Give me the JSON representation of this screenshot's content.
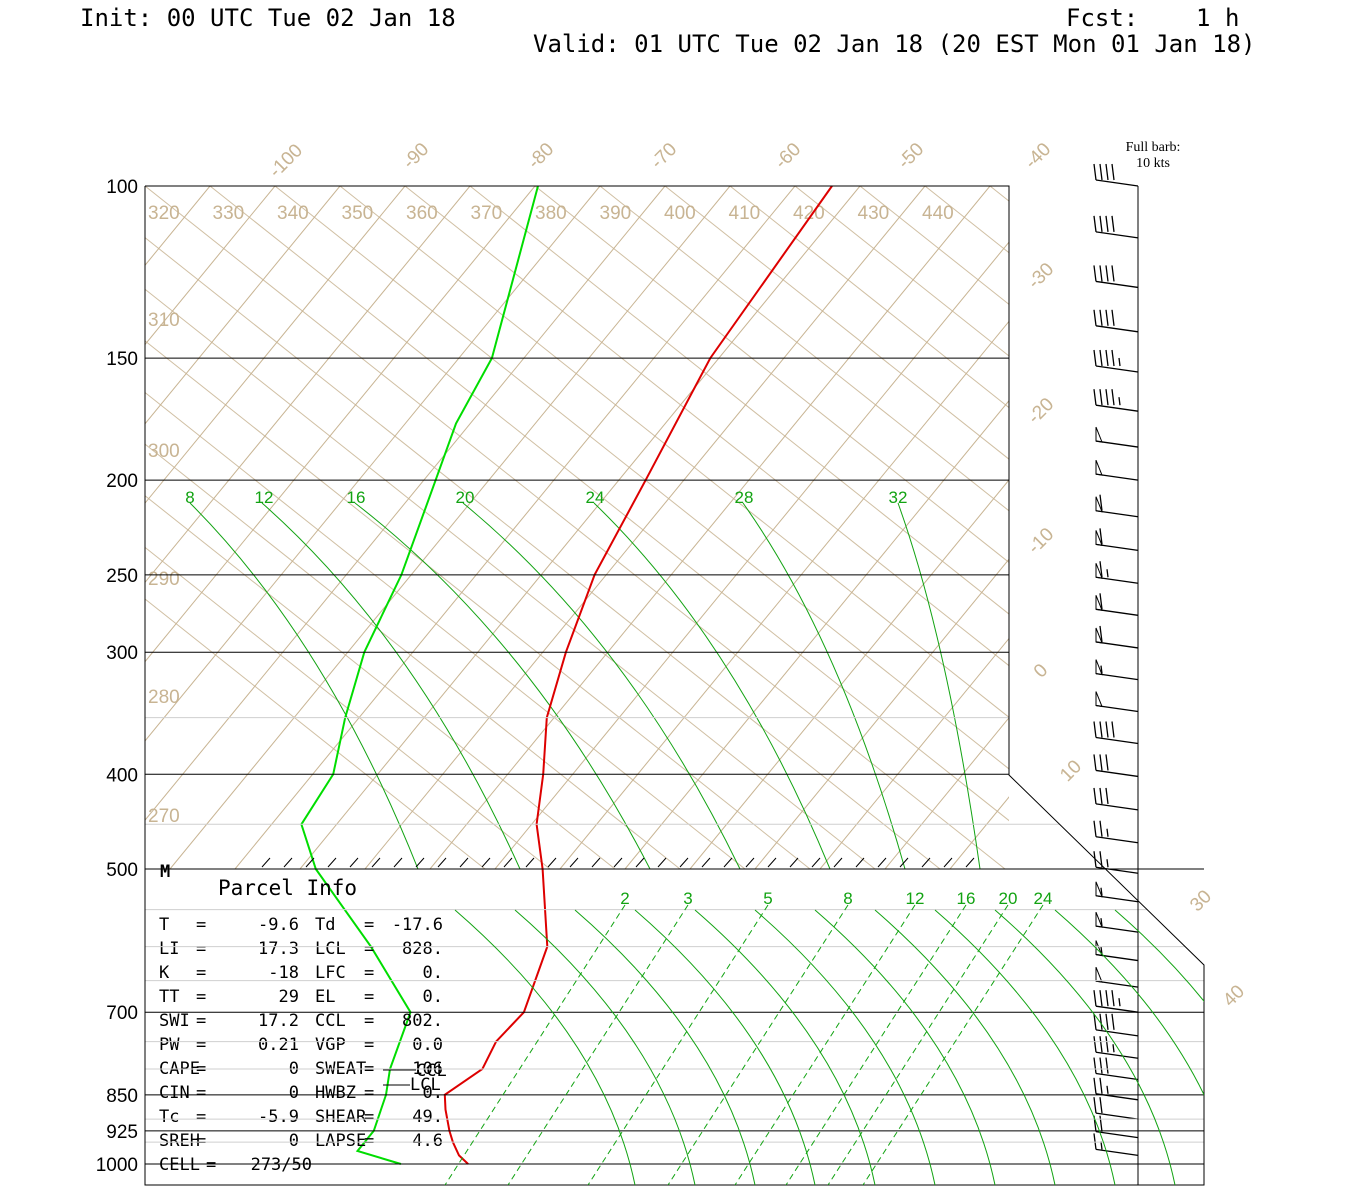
{
  "header": {
    "init": "Init: 00 UTC Tue 02 Jan 18",
    "fcst": "Fcst:    1 h",
    "valid": "Valid: 01 UTC Tue 02 Jan 18 (20 EST Mon 01 Jan 18)"
  },
  "barb_legend": {
    "line1": "Full barb:",
    "line2": "10 kts"
  },
  "parcel": {
    "title": "Parcel Info",
    "rows": [
      [
        "T",
        "-9.6",
        "Td",
        "-17.6"
      ],
      [
        "LI",
        "17.3",
        "LCL",
        "828."
      ],
      [
        "K",
        "-18",
        "LFC",
        "0."
      ],
      [
        "TT",
        "29",
        "EL",
        "0."
      ],
      [
        "SWI",
        "17.2",
        "CCL",
        "802."
      ],
      [
        "PW",
        "0.21",
        "VGP",
        "0.0"
      ],
      [
        "CAPE",
        "0",
        "SWEAT",
        "106"
      ],
      [
        "CIN",
        "0",
        "HWBZ",
        "0."
      ],
      [
        "Tc",
        "-5.9",
        "SHEAR",
        "49."
      ],
      [
        "SREH",
        "0",
        "LAPSE",
        "4.6"
      ],
      [
        "CELL",
        "273/50",
        "",
        ""
      ]
    ]
  },
  "markers": {
    "ccl": "CCL",
    "lcl": "LCL",
    "m": "M"
  },
  "colors": {
    "temperature": "#dd0000",
    "dewpoint": "#00dd00",
    "isotherm": "#c8b493",
    "mixing_ratio": "#12a312",
    "isobar": "#000000"
  },
  "chart_data": {
    "type": "line",
    "title": "",
    "yscale": "log-pressure (mb)",
    "pressure_ticks": [
      "100",
      "150",
      "200",
      "250",
      "300",
      "400",
      "500",
      "700",
      "850",
      "925",
      "1000"
    ],
    "isotherm_labels": [
      "-100",
      "-90",
      "-80",
      "-70",
      "-60",
      "-50",
      "-40",
      "-30",
      "-20",
      "-10",
      "0",
      "10",
      "30",
      "40"
    ],
    "theta_labels_top": [
      "320",
      "330",
      "340",
      "350",
      "360",
      "370",
      "380",
      "390",
      "400",
      "410",
      "420",
      "430",
      "440"
    ],
    "theta_labels_left": [
      "310",
      "300",
      "290",
      "280",
      "270"
    ],
    "mixing_ratio_labels_upper": [
      "8",
      "12",
      "16",
      "20",
      "24",
      "28",
      "32"
    ],
    "mixing_ratio_labels_lower": [
      "2",
      "3",
      "5",
      "8",
      "12",
      "16",
      "20",
      "24"
    ],
    "series": [
      {
        "name": "T",
        "points": [
          [
            1000,
            -9.6
          ],
          [
            980,
            -11.5
          ],
          [
            950,
            -13.5
          ],
          [
            925,
            -15
          ],
          [
            880,
            -17.5
          ],
          [
            850,
            -19
          ],
          [
            800,
            -17
          ],
          [
            750,
            -18
          ],
          [
            700,
            -17.5
          ],
          [
            600,
            -21
          ],
          [
            500,
            -29
          ],
          [
            450,
            -34
          ],
          [
            400,
            -38
          ],
          [
            350,
            -43
          ],
          [
            300,
            -47
          ],
          [
            250,
            -51
          ],
          [
            200,
            -54
          ],
          [
            150,
            -58
          ],
          [
            100,
            -60
          ]
        ]
      },
      {
        "name": "Td",
        "points": [
          [
            1000,
            -17.6
          ],
          [
            970,
            -24
          ],
          [
            925,
            -24
          ],
          [
            850,
            -26
          ],
          [
            800,
            -28
          ],
          [
            700,
            -31
          ],
          [
            600,
            -42
          ],
          [
            500,
            -56
          ],
          [
            450,
            -62
          ],
          [
            400,
            -63
          ],
          [
            350,
            -67
          ],
          [
            300,
            -71
          ],
          [
            250,
            -74
          ],
          [
            200,
            -79
          ],
          [
            175,
            -82
          ],
          [
            150,
            -84
          ],
          [
            100,
            -95
          ]
        ]
      }
    ],
    "winds_kt": [
      {
        "p": 100,
        "speed": 40
      },
      {
        "p": 113,
        "speed": 40
      },
      {
        "p": 127,
        "speed": 40
      },
      {
        "p": 141,
        "speed": 40
      },
      {
        "p": 155,
        "speed": 45
      },
      {
        "p": 170,
        "speed": 45
      },
      {
        "p": 185,
        "speed": 50
      },
      {
        "p": 200,
        "speed": 50
      },
      {
        "p": 218,
        "speed": 60
      },
      {
        "p": 236,
        "speed": 60
      },
      {
        "p": 255,
        "speed": 65
      },
      {
        "p": 275,
        "speed": 60
      },
      {
        "p": 297,
        "speed": 60
      },
      {
        "p": 320,
        "speed": 55
      },
      {
        "p": 345,
        "speed": 50
      },
      {
        "p": 372,
        "speed": 40
      },
      {
        "p": 402,
        "speed": 30
      },
      {
        "p": 435,
        "speed": 30
      },
      {
        "p": 470,
        "speed": 25
      },
      {
        "p": 505,
        "speed": 25
      },
      {
        "p": 540,
        "speed": 55
      },
      {
        "p": 580,
        "speed": 55
      },
      {
        "p": 620,
        "speed": 55
      },
      {
        "p": 660,
        "speed": 50
      },
      {
        "p": 700,
        "speed": 45
      },
      {
        "p": 740,
        "speed": 40
      },
      {
        "p": 780,
        "speed": 35
      },
      {
        "p": 820,
        "speed": 30
      },
      {
        "p": 860,
        "speed": 25
      },
      {
        "p": 900,
        "speed": 20
      },
      {
        "p": 940,
        "speed": 20
      },
      {
        "p": 980,
        "speed": 15
      }
    ]
  }
}
